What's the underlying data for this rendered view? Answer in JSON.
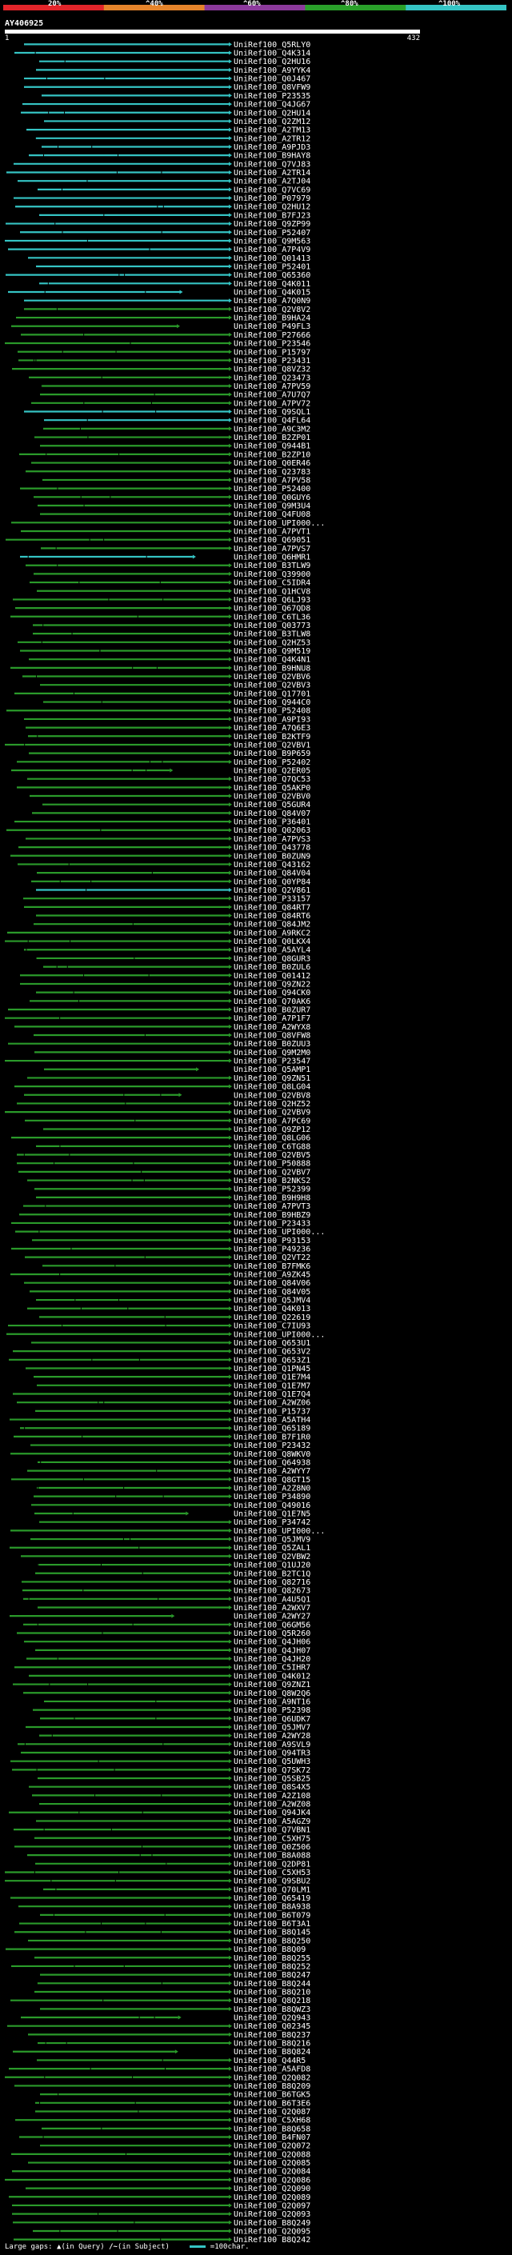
{
  "legend": {
    "labels": [
      "20%",
      "^40%",
      "^60%",
      "^80%",
      "^100%"
    ],
    "colors": [
      "#e2252a",
      "#e5842b",
      "#8c3a9c",
      "#2aa02a",
      "#35c4c4"
    ]
  },
  "query": {
    "id": "AY406925",
    "start": "1",
    "end": "432"
  },
  "hits": [
    "UniRef100_Q5RLY0",
    "UniRef100_Q4K314",
    "UniRef100_Q2HU16",
    "UniRef100_A9YYK4",
    "UniRef100_Q0J467",
    "UniRef100_Q8VFW9",
    "UniRef100_P23535",
    "UniRef100_Q4JG67",
    "UniRef100_Q2HU14",
    "UniRef100_Q2ZM12",
    "UniRef100_A2TM13",
    "UniRef100_A2TR12",
    "UniRef100_A9PJD3",
    "UniRef100_B9HAY8",
    "UniRef100_Q7VJ83",
    "UniRef100_A2TR14",
    "UniRef100_A2TJ04",
    "UniRef100_Q7VC69",
    "UniRef100_P07979",
    "UniRef100_Q2HU12",
    "UniRef100_B7FJ23",
    "UniRef100_Q9ZP99",
    "UniRef100_P52407",
    "UniRef100_Q9M563",
    "UniRef100_A7P4V9",
    "UniRef100_Q01413",
    "UniRef100_P52401",
    "UniRef100_Q65360",
    "UniRef100_Q4K011",
    "UniRef100_Q4K015",
    "UniRef100_A7Q0N9",
    "UniRef100_Q2V8V2",
    "UniRef100_B9HA24",
    "UniRef100_P49FL3",
    "UniRef100_P27666",
    "UniRef100_P23546",
    "UniRef100_P15797",
    "UniRef100_P23431",
    "UniRef100_Q8VZ32",
    "UniRef100_Q23473",
    "UniRef100_A7PV59",
    "UniRef100_A7U7Q7",
    "UniRef100_A7PV72",
    "UniRef100_Q9SQL1",
    "UniRef100_Q4FL64",
    "UniRef100_A9C3M2",
    "UniRef100_B2ZP01",
    "UniRef100_Q944B1",
    "UniRef100_B2ZP10",
    "UniRef100_Q0ER46",
    "UniRef100_Q23783",
    "UniRef100_A7PV58",
    "UniRef100_P52400",
    "UniRef100_Q0GUY6",
    "UniRef100_Q9M3U4",
    "UniRef100_Q4FU08",
    "UniRef100_UPI000...",
    "UniRef100_A7PVT1",
    "UniRef100_Q69051",
    "UniRef100_A7PVS7",
    "UniRef100_Q6HMR1",
    "UniRef100_B3TLW9",
    "UniRef100_Q39900",
    "UniRef100_C5IDR4",
    "UniRef100_Q1HCV8",
    "UniRef100_Q6LJ93",
    "UniRef100_Q67QD8",
    "UniRef100_C6TL36",
    "UniRef100_Q03773",
    "UniRef100_B3TLW8",
    "UniRef100_Q2HZ53",
    "UniRef100_Q9M519",
    "UniRef100_Q4K4N1",
    "UniRef100_B9HNU8",
    "UniRef100_Q2VBV6",
    "UniRef100_Q2VBV3",
    "UniRef100_Q17701",
    "UniRef100_Q944C0",
    "UniRef100_P52408",
    "UniRef100_A9PI93",
    "UniRef100_A7Q6E3",
    "UniRef100_B2KTF9",
    "UniRef100_Q2VBV1",
    "UniRef100_B9P659",
    "UniRef100_P52402",
    "UniRef100_Q2ER05",
    "UniRef100_Q7QC53",
    "UniRef100_Q5AKP0",
    "UniRef100_Q2VBV0",
    "UniRef100_Q5GUR4",
    "UniRef100_Q84V07",
    "UniRef100_P36401",
    "UniRef100_Q02063",
    "UniRef100_A7PVS3",
    "UniRef100_Q43778",
    "UniRef100_B0ZUN9",
    "UniRef100_Q43162",
    "UniRef100_Q84V04",
    "UniRef100_Q0YP84",
    "UniRef100_Q2V861",
    "UniRef100_P33157",
    "UniRef100_Q84RT7",
    "UniRef100_Q84RT6",
    "UniRef100_Q84JM2",
    "UniRef100_A9RKC2",
    "UniRef100_Q0LKX4",
    "UniRef100_A5AYL4",
    "UniRef100_Q8GUR3",
    "UniRef100_B0ZUL6",
    "UniRef100_Q01412",
    "UniRef100_Q9ZN22",
    "UniRef100_Q94CK0",
    "UniRef100_Q70AK6",
    "UniRef100_B0ZUR7",
    "UniRef100_A7P1F7",
    "UniRef100_A2WYX8",
    "UniRef100_Q8VFW8",
    "UniRef100_B0ZUU3",
    "UniRef100_Q9M2M0",
    "UniRef100_P23547",
    "UniRef100_Q5AMP1",
    "UniRef100_Q9ZN51",
    "UniRef100_Q8LG04",
    "UniRef100_Q2VBV8",
    "UniRef100_Q2HZ52",
    "UniRef100_Q2VBV9",
    "UniRef100_A7PC69",
    "UniRef100_Q9ZP12",
    "UniRef100_Q8LG06",
    "UniRef100_C6TG88",
    "UniRef100_Q2VBV5",
    "UniRef100_P50888",
    "UniRef100_Q2VBV7",
    "UniRef100_B2NKS2",
    "UniRef100_P52399",
    "UniRef100_B9H9H8",
    "UniRef100_A7PVT3",
    "UniRef100_B9HBZ9",
    "UniRef100_P23433",
    "UniRef100_UPI000...",
    "UniRef100_P93153",
    "UniRef100_P49236",
    "UniRef100_Q2VT22",
    "UniRef100_B7FMK6",
    "UniRef100_A9ZK45",
    "UniRef100_Q84V06",
    "UniRef100_Q84V05",
    "UniRef100_Q5JMV4",
    "UniRef100_Q4K013",
    "UniRef100_Q22619",
    "UniRef100_C7IU93",
    "UniRef100_UPI000...",
    "UniRef100_Q653U1",
    "UniRef100_Q653V2",
    "UniRef100_Q653Z1",
    "UniRef100_Q1PN45",
    "UniRef100_Q1E7M4",
    "UniRef100_Q1E7M7",
    "UniRef100_Q1E7Q4",
    "UniRef100_A2WZ06",
    "UniRef100_P15737",
    "UniRef100_A5ATH4",
    "UniRef100_Q65189",
    "UniRef100_B7F1R0",
    "UniRef100_P23432",
    "UniRef100_Q8WKV0",
    "UniRef100_Q64938",
    "UniRef100_A2WYY7",
    "UniRef100_Q8GT15",
    "UniRef100_A2Z8N0",
    "UniRef100_P34890",
    "UniRef100_Q49016",
    "UniRef100_Q1E7N5",
    "UniRef100_P34742",
    "UniRef100_UPI000...",
    "UniRef100_Q5JMV9",
    "UniRef100_Q5ZAL1",
    "UniRef100_Q2VBW2",
    "UniRef100_Q1UJ20",
    "UniRef100_B2TC1Q",
    "UniRef100_Q82716",
    "UniRef100_Q82673",
    "UniRef100_A4U5Q1",
    "UniRef100_A2WXV7",
    "UniRef100_A2WY27",
    "UniRef100_Q6GM56",
    "UniRef100_Q5R260",
    "UniRef100_Q4JH06",
    "UniRef100_Q4JH07",
    "UniRef100_Q4JH20",
    "UniRef100_C5IHR7",
    "UniRef100_Q4K012",
    "UniRef100_Q9ZNZ1",
    "UniRef100_Q8W2Q6",
    "UniRef100_A9NT16",
    "UniRef100_P52398",
    "UniRef100_Q6UDK7",
    "UniRef100_Q5JMV7",
    "UniRef100_A2WY28",
    "UniRef100_A9SVL9",
    "UniRef100_Q94TR3",
    "UniRef100_Q5UWH3",
    "UniRef100_Q7SK72",
    "UniRef100_Q5SB25",
    "UniRef100_Q8S4X5",
    "UniRef100_A2Z108",
    "UniRef100_A2WZ08",
    "UniRef100_Q94JK4",
    "UniRef100_A5AGZ9",
    "UniRef100_Q7VBN1",
    "UniRef100_C5XH75",
    "UniRef100_Q0Z506",
    "UniRef100_B8A088",
    "UniRef100_Q2DP81",
    "UniRef100_C5XH53",
    "UniRef100_Q9SBU2",
    "UniRef100_Q70LM1",
    "UniRef100_Q65419",
    "UniRef100_B8A938",
    "UniRef100_B6T079",
    "UniRef100_B6T3A1",
    "UniRef100_B8Q145",
    "UniRef100_B8Q250",
    "UniRef100_B8Q09",
    "UniRef100_B8Q255",
    "UniRef100_B8Q252",
    "UniRef100_B8Q247",
    "UniRef100_B8Q244",
    "UniRef100_B8Q210",
    "UniRef100_Q8Q218",
    "UniRef100_B8QWZ3",
    "UniRef100_Q2Q943",
    "UniRef100_Q02345",
    "UniRef100_B8Q237",
    "UniRef100_B8Q216",
    "UniRef100_B8Q824",
    "UniRef100_Q44R5",
    "UniRef100_A5AFD8",
    "UniRef100_Q2Q082",
    "UniRef100_B8Q209",
    "UniRef100_B6TGK5",
    "UniRef100_B6T3E6",
    "UniRef100_Q2Q087",
    "UniRef100_C5XH68",
    "UniRef100_B8Q658",
    "UniRef100_B4FN07",
    "UniRef100_Q2Q072",
    "UniRef100_Q2Q088",
    "UniRef100_Q2Q085",
    "UniRef100_Q2Q084",
    "UniRef100_Q2Q086",
    "UniRef100_Q2Q090",
    "UniRef100_Q2Q089",
    "UniRef100_Q2Q097",
    "UniRef100_Q2Q093",
    "UniRef100_B8Q249",
    "UniRef100_Q2Q095",
    "UniRef100_B8Q242"
  ],
  "footer": {
    "gaps_label": "Large gaps:",
    "in_query": "(in Query)",
    "in_subject": "(in Subject)",
    "scale_label": "=100char."
  }
}
